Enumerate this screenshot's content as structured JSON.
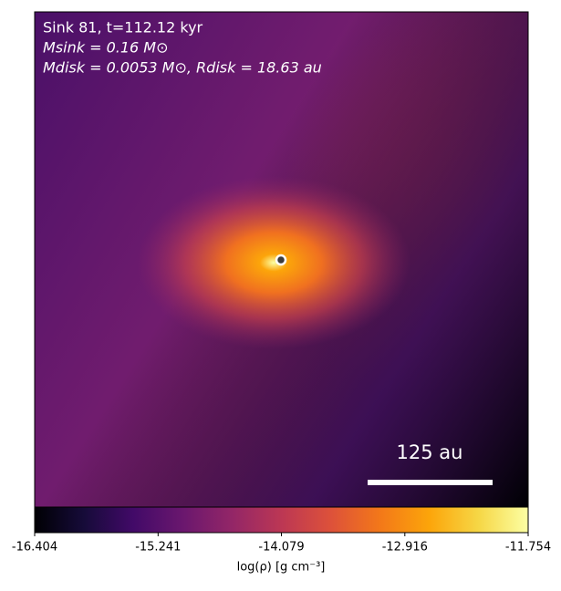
{
  "chart_data": {
    "type": "density-map",
    "annotations": [
      "Sink 81, t=112.12 kyr",
      "Msink = 0.16 M⊙",
      "Mdisk = 0.0053 M⊙, Rdisk = 18.63 au"
    ],
    "scale_bar_label": "125 au",
    "colorbar": {
      "label": "log(ρ) [g cm⁻³]",
      "lim": [
        -16.404,
        -11.754
      ],
      "ticks": [
        -16.404,
        -15.241,
        -14.079,
        -12.916,
        -11.754
      ]
    }
  }
}
